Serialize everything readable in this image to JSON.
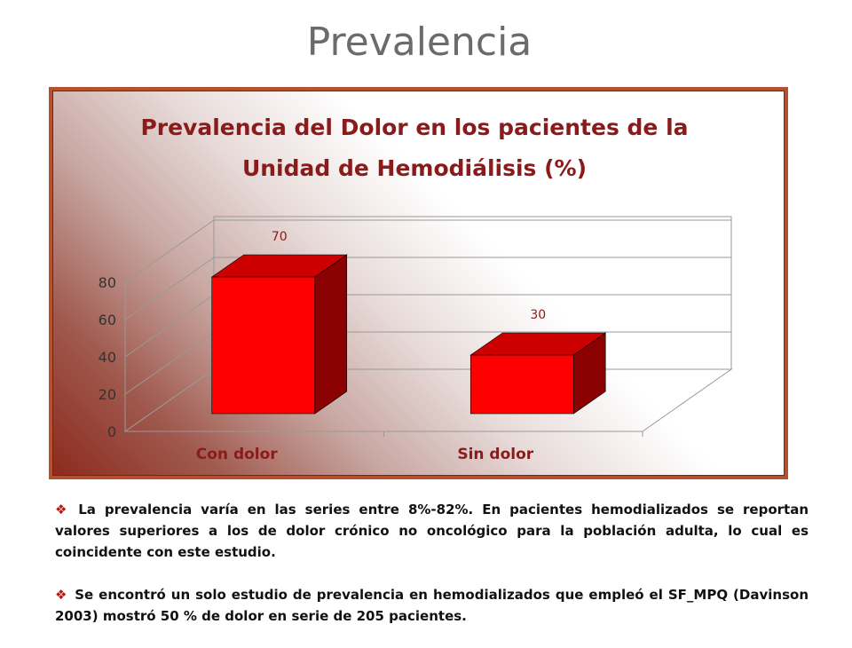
{
  "slide": {
    "title": "Prevalencia",
    "bullets": [
      "La prevalencia varía en las series entre 8%-82%. En pacientes hemodializados se reportan valores superiores a los de dolor crónico no oncológico para la población adulta, lo cual es coincidente con este estudio.",
      "Se encontró un solo estudio de prevalencia en hemodializados que empleó el SF_MPQ (Davinson 2003) mostró 50 % de dolor en serie de 205 pacientes."
    ]
  },
  "chart_data": {
    "type": "bar",
    "title": "Prevalencia del Dolor en los pacientes de la Unidad de Hemodiálisis (%)",
    "title_lines": [
      "Prevalencia del Dolor en los pacientes de la",
      "Unidad de Hemodiálisis (%)"
    ],
    "categories": [
      "Con dolor",
      "Sin dolor"
    ],
    "values": [
      70,
      30
    ],
    "data_labels": [
      "70",
      "30"
    ],
    "ylim": [
      0,
      80
    ],
    "yticks": [
      0,
      20,
      40,
      60,
      80
    ],
    "grid": true,
    "style": "3d",
    "colors": {
      "bar_front": "#ff0000",
      "bar_side": "#8b0000",
      "bar_top": "#cc0000",
      "title": "#8b1a1a",
      "category_label": "#8b1a1a",
      "data_label": "#8b1a1a",
      "frame": "#b5512e"
    }
  }
}
